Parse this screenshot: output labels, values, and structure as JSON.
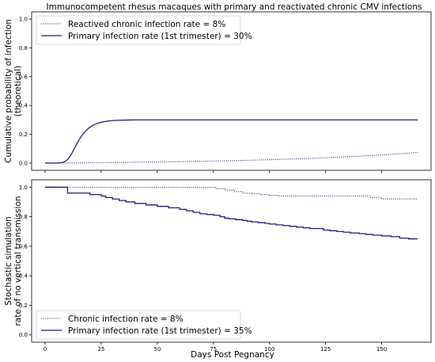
{
  "chart_data": {
    "type": "line",
    "title": "Immunocompetent rhesus macaques with primary and reactivated chronic CMV infections",
    "xlabel": "Days Post Pegnancy",
    "xlim": [
      -6,
      172
    ],
    "x_ticks": [
      "0",
      "25",
      "50",
      "75",
      "100",
      "125",
      "150"
    ],
    "panels": [
      {
        "ylabel_lines": [
          "Cumulative probability of infection",
          "(theoretical)"
        ],
        "ylim": [
          -0.05,
          1.05
        ],
        "y_ticks": [
          "0.0",
          "0.2",
          "0.4",
          "0.6",
          "0.8",
          "1.0"
        ],
        "legend_position": "upper-left",
        "series": [
          {
            "name": "Reactived chronic infection rate = 8%",
            "style": "dotted",
            "color": "#1f1f7a",
            "x": [
              0,
              10,
              20,
              30,
              40,
              50,
              60,
              70,
              80,
              90,
              100,
              110,
              120,
              130,
              140,
              150,
              160,
              166
            ],
            "y": [
              0.0,
              0.0009,
              0.0025,
              0.0042,
              0.006,
              0.0081,
              0.0104,
              0.013,
              0.016,
              0.0195,
              0.0236,
              0.0284,
              0.034,
              0.0405,
              0.048,
              0.0567,
              0.067,
              0.074
            ]
          },
          {
            "name": "Primary infection rate (1st trimester) = 30%",
            "style": "solid",
            "color": "#1f1f7a",
            "x": [
              0,
              4,
              6,
              8,
              9,
              10,
              11,
              12,
              13,
              14,
              15,
              16,
              17,
              18,
              19,
              20,
              22,
              24,
              26,
              28,
              30,
              33,
              36,
              40,
              45,
              50,
              60,
              80,
              100,
              120,
              140,
              166
            ],
            "y": [
              0.0,
              0.0,
              0.001,
              0.005,
              0.012,
              0.025,
              0.045,
              0.07,
              0.1,
              0.13,
              0.158,
              0.183,
              0.205,
              0.222,
              0.237,
              0.25,
              0.268,
              0.279,
              0.287,
              0.292,
              0.295,
              0.298,
              0.299,
              0.3,
              0.3,
              0.3,
              0.3,
              0.3,
              0.3,
              0.3,
              0.3,
              0.3
            ]
          }
        ]
      },
      {
        "ylabel_lines": [
          "Stochastic simulation",
          "rate of no vertical transmission"
        ],
        "ylim": [
          -0.05,
          1.05
        ],
        "y_ticks": [
          "0.0",
          "0.2",
          "0.4",
          "0.6",
          "0.8",
          "1.0"
        ],
        "legend_position": "lower-left",
        "series": [
          {
            "name": "Chronic infection rate = 8%",
            "style": "dotted",
            "color": "#1f1f7a",
            "step": true,
            "x": [
              0,
              6,
              8,
              72,
              76,
              80,
              84,
              88,
              92,
              96,
              100,
              104,
              108,
              140,
              145,
              150,
              166
            ],
            "y": [
              1.0,
              1.0,
              0.999,
              0.999,
              0.99,
              0.98,
              0.97,
              0.96,
              0.955,
              0.95,
              0.945,
              0.94,
              0.94,
              0.94,
              0.93,
              0.92,
              0.92
            ]
          },
          {
            "name": "Primary infection rate (1st trimester) = 35%",
            "style": "solid",
            "color": "#1f1f7a",
            "step": true,
            "x": [
              0,
              9,
              10,
              20,
              25,
              27,
              30,
              33,
              36,
              40,
              45,
              50,
              55,
              60,
              63,
              66,
              69,
              72,
              75,
              78,
              80,
              82,
              85,
              88,
              90,
              92,
              95,
              98,
              100,
              103,
              106,
              109,
              112,
              115,
              118,
              121,
              124,
              127,
              130,
              133,
              136,
              140,
              143,
              146,
              150,
              154,
              158,
              162,
              166
            ],
            "y": [
              1.0,
              1.0,
              0.96,
              0.95,
              0.94,
              0.93,
              0.92,
              0.91,
              0.9,
              0.89,
              0.88,
              0.87,
              0.86,
              0.85,
              0.84,
              0.83,
              0.82,
              0.815,
              0.81,
              0.8,
              0.79,
              0.785,
              0.78,
              0.775,
              0.77,
              0.765,
              0.76,
              0.755,
              0.75,
              0.745,
              0.74,
              0.735,
              0.73,
              0.725,
              0.72,
              0.72,
              0.71,
              0.705,
              0.7,
              0.695,
              0.69,
              0.685,
              0.68,
              0.675,
              0.67,
              0.665,
              0.655,
              0.65,
              0.65
            ]
          }
        ]
      }
    ]
  }
}
